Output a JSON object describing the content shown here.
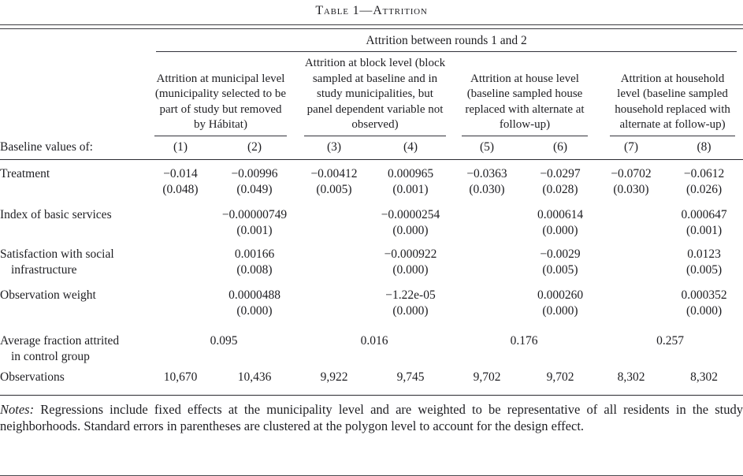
{
  "title": "Table 1—Attrition",
  "table": {
    "span_header": "Attrition between rounds 1 and 2",
    "stub_header": "Baseline values of:",
    "col_groups": [
      {
        "label": "Attrition at municipal level (municipality selected to be part of study but removed by Hábitat)"
      },
      {
        "label": "Attrition at block level (block sampled at baseline and in study municipalities, but panel dependent variable not observed)"
      },
      {
        "label": "Attrition at house level (baseline sam­pled house replaced with alternate at follow-up)"
      },
      {
        "label": "Attrition at household level (baseline sampled household replaced with alter­nate at follow-up)"
      }
    ],
    "col_numbers": [
      "(1)",
      "(2)",
      "(3)",
      "(4)",
      "(5)",
      "(6)",
      "(7)",
      "(8)"
    ],
    "rows": {
      "treatment": {
        "label": "Treatment",
        "coefs": [
          "−0.014",
          "−0.00996",
          "−0.00412",
          "0.000965",
          "−0.0363",
          "−0.0297",
          "−0.0702",
          "−0.0612"
        ],
        "ses": [
          "(0.048)",
          "(0.049)",
          "(0.005)",
          "(0.001)",
          "(0.030)",
          "(0.028)",
          "(0.030)",
          "(0.026)"
        ]
      },
      "index_services": {
        "label": "Index of basic services",
        "coefs": [
          "",
          "−0.00000749",
          "",
          "−0.0000254",
          "",
          "0.000614",
          "",
          "0.000647"
        ],
        "ses": [
          "",
          "(0.001)",
          "",
          "(0.000)",
          "",
          "(0.000)",
          "",
          "(0.001)"
        ]
      },
      "satisfaction": {
        "label_line1": "Satisfaction with social",
        "label_line2": "infrastructure",
        "coefs": [
          "",
          "0.00166",
          "",
          "−0.000922",
          "",
          "−0.0029",
          "",
          "0.0123"
        ],
        "ses": [
          "",
          "(0.008)",
          "",
          "(0.000)",
          "",
          "(0.005)",
          "",
          "(0.005)"
        ]
      },
      "obs_weight": {
        "label": "Observation weight",
        "coefs": [
          "",
          "0.0000488",
          "",
          "−1.22e-05",
          "",
          "0.000260",
          "",
          "0.000352"
        ],
        "ses": [
          "",
          "(0.000)",
          "",
          "(0.000)",
          "",
          "(0.000)",
          "",
          "(0.000)"
        ]
      },
      "avg_fraction": {
        "label_line1": "Average fraction attrited",
        "label_line2": "in control group",
        "values": [
          "0.095",
          "0.016",
          "0.176",
          "0.257"
        ]
      },
      "observations": {
        "label": "Observations",
        "values": [
          "10,670",
          "10,436",
          "9,922",
          "9,745",
          "9,702",
          "9,702",
          "8,302",
          "8,302"
        ]
      }
    }
  },
  "notes": {
    "label": "Notes:",
    "text": " Regressions include fixed effects at the municipality level and are weighted to be representative of all residents in the study neighborhoods. Standard errors in parentheses are clustered at the polygon level to account for the design effect."
  }
}
